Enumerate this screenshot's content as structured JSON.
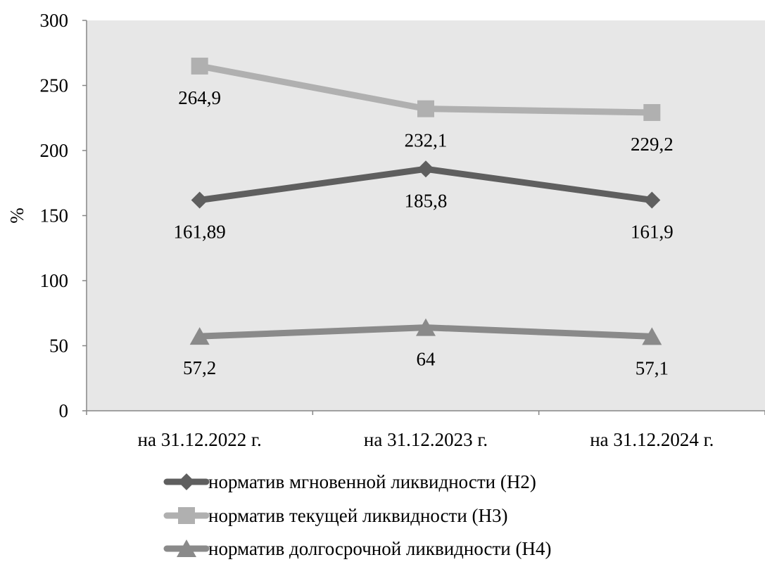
{
  "chart_data": {
    "type": "line",
    "title": "",
    "xlabel": "",
    "ylabel": "%",
    "ylim": [
      0,
      300
    ],
    "yticks": [
      0,
      50,
      100,
      150,
      200,
      250,
      300
    ],
    "ytick_labels": [
      "0",
      "50",
      "100",
      "150",
      "200",
      "250",
      "300"
    ],
    "grid": false,
    "plot_background": "#e7e7e7",
    "legend_position": "bottom",
    "categories": [
      "на 31.12.2022 г.",
      "на 31.12.2023 г.",
      "на 31.12.2024 г."
    ],
    "series": [
      {
        "name": "норматив мгновенной ликвидности (Н2)",
        "values": [
          161.89,
          185.8,
          161.9
        ],
        "labels": [
          "161,89",
          "185,8",
          "161,9"
        ],
        "marker": "diamond",
        "color": "#5f5f5f"
      },
      {
        "name": "норматив текущей ликвидности (Н3)",
        "values": [
          264.9,
          232.1,
          229.2
        ],
        "labels": [
          "264,9",
          "232,1",
          "229,2"
        ],
        "marker": "square",
        "color": "#b0b0b0"
      },
      {
        "name": "норматив долгосрочной ликвидности (Н4)",
        "values": [
          57.2,
          64,
          57.1
        ],
        "labels": [
          "57,2",
          "64",
          "57,1"
        ],
        "marker": "triangle",
        "color": "#8a8a8a"
      }
    ]
  }
}
